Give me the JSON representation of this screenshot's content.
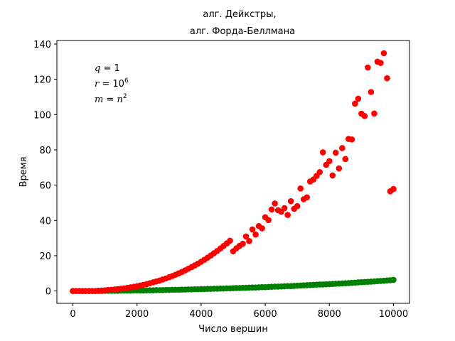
{
  "chart_data": {
    "type": "scatter",
    "title_lines": [
      {
        "text": "алг. Дейкстры,",
        "color": "#008000"
      },
      {
        "text": "алг. Форда-Беллмана",
        "color": "#ff0000"
      }
    ],
    "xlabel": "Число вершин",
    "ylabel": "Время",
    "xlim": [
      -500,
      10500
    ],
    "ylim": [
      -7,
      142
    ],
    "xticks": [
      0,
      2000,
      4000,
      6000,
      8000,
      10000
    ],
    "yticks": [
      0,
      20,
      40,
      60,
      80,
      100,
      120,
      140
    ],
    "grid": false,
    "annotations": [
      {
        "lhs": "q",
        "rhs": "1",
        "sup": ""
      },
      {
        "lhs": "r",
        "rhs": "10",
        "sup": "6"
      },
      {
        "lhs": "m",
        "rhs": "n",
        "sup": "2"
      }
    ],
    "series": [
      {
        "name": "алг. Дейкстры",
        "color": "#008000",
        "x": [
          0,
          100,
          200,
          300,
          400,
          500,
          600,
          700,
          800,
          900,
          1000,
          1100,
          1200,
          1300,
          1400,
          1500,
          1600,
          1700,
          1800,
          1900,
          2000,
          2100,
          2200,
          2300,
          2400,
          2500,
          2600,
          2700,
          2800,
          2900,
          3000,
          3100,
          3200,
          3300,
          3400,
          3500,
          3600,
          3700,
          3800,
          3900,
          4000,
          4100,
          4200,
          4300,
          4400,
          4500,
          4600,
          4700,
          4800,
          4900,
          5000,
          5100,
          5200,
          5300,
          5400,
          5500,
          5600,
          5700,
          5800,
          5900,
          6000,
          6100,
          6200,
          6300,
          6400,
          6500,
          6600,
          6700,
          6800,
          6900,
          7000,
          7100,
          7200,
          7300,
          7400,
          7500,
          7600,
          7700,
          7800,
          7900,
          8000,
          8100,
          8200,
          8300,
          8400,
          8500,
          8600,
          8700,
          8800,
          8900,
          9000,
          9100,
          9200,
          9300,
          9400,
          9500,
          9600,
          9700,
          9800,
          9900,
          10000
        ],
        "y": [
          0,
          0,
          0,
          0,
          0,
          0,
          0,
          0,
          0,
          0,
          0.1,
          0.1,
          0.1,
          0.1,
          0.1,
          0.2,
          0.2,
          0.2,
          0.2,
          0.3,
          0.3,
          0.3,
          0.3,
          0.4,
          0.4,
          0.4,
          0.5,
          0.5,
          0.5,
          0.6,
          0.6,
          0.7,
          0.7,
          0.7,
          0.8,
          0.8,
          0.9,
          0.9,
          1.0,
          1.0,
          1.1,
          1.1,
          1.2,
          1.2,
          1.3,
          1.3,
          1.4,
          1.4,
          1.5,
          1.5,
          1.6,
          1.7,
          1.7,
          1.8,
          1.8,
          1.9,
          2.0,
          2.0,
          2.1,
          2.2,
          2.2,
          2.3,
          2.4,
          2.5,
          2.5,
          2.6,
          2.7,
          2.8,
          2.8,
          2.9,
          3.0,
          3.1,
          3.2,
          3.3,
          3.4,
          3.5,
          3.6,
          3.7,
          3.7,
          3.8,
          3.9,
          4.0,
          4.1,
          4.2,
          4.3,
          4.4,
          4.5,
          4.6,
          4.7,
          4.9,
          5.0,
          5.1,
          5.2,
          5.3,
          5.4,
          5.6,
          5.7,
          5.8,
          6.0,
          6.1,
          6.3
        ]
      },
      {
        "name": "алг. Форда-Беллмана",
        "color": "#ff0000",
        "x": [
          0,
          100,
          200,
          300,
          400,
          500,
          600,
          700,
          800,
          900,
          1000,
          1100,
          1200,
          1300,
          1400,
          1500,
          1600,
          1700,
          1800,
          1900,
          2000,
          2100,
          2200,
          2300,
          2400,
          2500,
          2600,
          2700,
          2800,
          2900,
          3000,
          3100,
          3200,
          3300,
          3400,
          3500,
          3600,
          3700,
          3800,
          3900,
          4000,
          4100,
          4200,
          4300,
          4400,
          4500,
          4600,
          4700,
          4800,
          4900,
          5000,
          5100,
          5200,
          5300,
          5400,
          5500,
          5600,
          5700,
          5800,
          5900,
          6000,
          6100,
          6200,
          6300,
          6400,
          6500,
          6600,
          6700,
          6800,
          6900,
          7000,
          7100,
          7200,
          7300,
          7400,
          7500,
          7600,
          7700,
          7800,
          7900,
          8000,
          8100,
          8200,
          8300,
          8400,
          8500,
          8600,
          8700,
          8800,
          8900,
          9000,
          9100,
          9200,
          9300,
          9400,
          9500,
          9600,
          9700,
          9800,
          9900,
          10000
        ],
        "y": [
          0,
          0,
          0,
          0,
          0,
          0,
          0,
          0,
          0.2,
          0.3,
          0.4,
          0.6,
          0.7,
          0.9,
          1.1,
          1.3,
          1.5,
          1.8,
          2.1,
          2.4,
          2.7,
          3.1,
          3.5,
          3.9,
          4.4,
          4.9,
          5.4,
          5.9,
          6.5,
          7.1,
          7.8,
          8.5,
          9.2,
          10.0,
          10.8,
          11.7,
          12.6,
          13.5,
          14.5,
          15.5,
          16.6,
          17.7,
          18.9,
          20.1,
          21.4,
          22.7,
          24.1,
          25.5,
          27.0,
          28.5,
          22.5,
          24.2,
          25.6,
          26.8,
          30.9,
          28.3,
          34.9,
          32.0,
          36.8,
          35.5,
          41.8,
          40.2,
          46.2,
          49.6,
          45.8,
          44.9,
          47.0,
          43.1,
          50.9,
          46.6,
          48.1,
          58.1,
          52.0,
          53.1,
          62.1,
          63.2,
          65.2,
          67.4,
          78.6,
          71.5,
          73.6,
          65.5,
          78.4,
          69.5,
          81.0,
          74.8,
          86.2,
          85.9,
          106.2,
          109.0,
          100.5,
          99.2,
          126.7,
          112.8,
          100.6,
          130.0,
          129.3,
          134.8,
          120.6,
          56.5,
          57.8
        ]
      }
    ]
  }
}
